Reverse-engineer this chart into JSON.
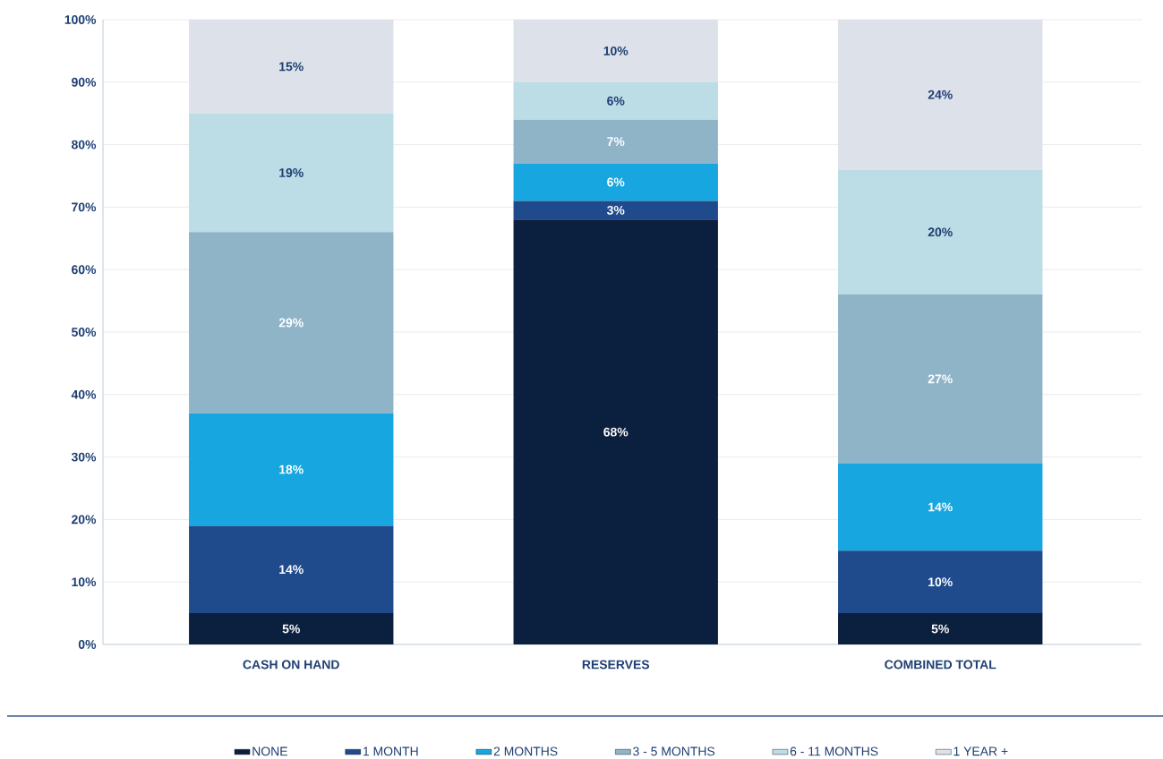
{
  "chart_data": {
    "type": "bar",
    "stacked": true,
    "categories": [
      "CASH ON HAND",
      "RESERVES",
      "COMBINED TOTAL"
    ],
    "series": [
      {
        "name": "NONE",
        "color": "#0b1f3f",
        "values": [
          5,
          68,
          5
        ],
        "value_labels": [
          "5%",
          "68%",
          "5%"
        ]
      },
      {
        "name": "1 MONTH",
        "color": "#1f4a8c",
        "values": [
          14,
          3,
          10
        ],
        "value_labels": [
          "14%",
          "3%",
          "10%"
        ]
      },
      {
        "name": "2 MONTHS",
        "color": "#17a6df",
        "values": [
          18,
          6,
          14
        ],
        "value_labels": [
          "18%",
          "6%",
          "14%"
        ]
      },
      {
        "name": "3 - 5 MONTHS",
        "color": "#8fb4c8",
        "values": [
          29,
          7,
          27
        ],
        "value_labels": [
          "29%",
          "7%",
          "27%"
        ]
      },
      {
        "name": "6 - 11 MONTHS",
        "color": "#bcdce6",
        "values": [
          19,
          6,
          20
        ],
        "value_labels": [
          "19%",
          "6%",
          "20%"
        ]
      },
      {
        "name": "1 YEAR +",
        "color": "#dde2ea",
        "values": [
          15,
          10,
          24
        ],
        "value_labels": [
          "15%",
          "10%",
          "24%"
        ]
      }
    ],
    "ylim": [
      0,
      100
    ],
    "yticks": [
      {
        "value": 0,
        "label": "0%"
      },
      {
        "value": 10,
        "label": "10%"
      },
      {
        "value": 20,
        "label": "20%"
      },
      {
        "value": 30,
        "label": "30%"
      },
      {
        "value": 40,
        "label": "40%"
      },
      {
        "value": 50,
        "label": "50%"
      },
      {
        "value": 60,
        "label": "60%"
      },
      {
        "value": 70,
        "label": "70%"
      },
      {
        "value": 80,
        "label": "80%"
      },
      {
        "value": 90,
        "label": "90%"
      },
      {
        "value": 100,
        "label": "100%"
      }
    ],
    "grid": "y",
    "legend": "bottom"
  }
}
